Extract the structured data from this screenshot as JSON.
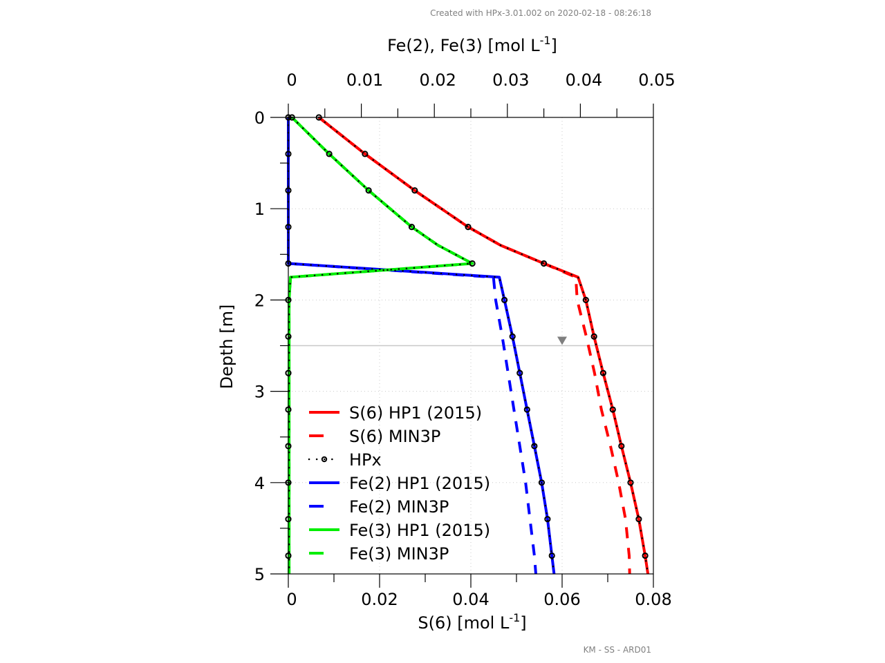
{
  "header": {
    "created_with": "Created with HPx-3.01.002  on 2020-02-18 - 08:26:18"
  },
  "footer": {
    "code": "KM - SS - ARD01"
  },
  "chart_data": {
    "type": "line",
    "title": "",
    "ylabel": "Depth [m]",
    "ylim": [
      0,
      5
    ],
    "yticks": [
      "0",
      "1",
      "2",
      "3",
      "4",
      "5"
    ],
    "y_inverted": true,
    "grid": true,
    "x_bottom": {
      "label": "S(6) [mol L",
      "label_sup": "-1",
      "label_end": "]",
      "xlim": [
        0,
        0.08
      ],
      "ticks": [
        "0",
        "0.02",
        "0.04",
        "0.06",
        "0.08"
      ]
    },
    "x_top": {
      "label": "Fe(2), Fe(3) [mol L",
      "label_sup": "-1",
      "label_end": "]",
      "xlim": [
        0,
        0.05
      ],
      "ticks": [
        "0",
        "0.01",
        "0.02",
        "0.03",
        "0.04",
        "0.05"
      ]
    },
    "water_table_depth": 2.5,
    "water_table_marker_x_s6": 0.06,
    "legend_position": "bottom-left",
    "series": [
      {
        "name": "S(6) HP1 (2015)",
        "axis": "bottom",
        "color": "#ff0000",
        "style": "solid",
        "points": [
          [
            0.0067,
            0
          ],
          [
            0.0168,
            0.4
          ],
          [
            0.0277,
            0.8
          ],
          [
            0.0394,
            1.2
          ],
          [
            0.0465,
            1.4
          ],
          [
            0.056,
            1.6
          ],
          [
            0.0635,
            1.75
          ],
          [
            0.0652,
            2.0
          ],
          [
            0.067,
            2.4
          ],
          [
            0.069,
            2.8
          ],
          [
            0.0711,
            3.2
          ],
          [
            0.073,
            3.6
          ],
          [
            0.075,
            4.0
          ],
          [
            0.0768,
            4.4
          ],
          [
            0.0782,
            4.8
          ],
          [
            0.0788,
            5.0
          ]
        ]
      },
      {
        "name": "S(6) MIN3P",
        "axis": "bottom",
        "color": "#ff0000",
        "style": "dashed",
        "points": [
          [
            0.0067,
            0
          ],
          [
            0.0168,
            0.4
          ],
          [
            0.0277,
            0.8
          ],
          [
            0.0394,
            1.2
          ],
          [
            0.0465,
            1.4
          ],
          [
            0.056,
            1.6
          ],
          [
            0.063,
            1.75
          ],
          [
            0.0633,
            2.0
          ],
          [
            0.0653,
            2.4
          ],
          [
            0.0671,
            2.8
          ],
          [
            0.0686,
            3.2
          ],
          [
            0.0706,
            3.6
          ],
          [
            0.0724,
            4.0
          ],
          [
            0.0739,
            4.4
          ],
          [
            0.0747,
            4.8
          ],
          [
            0.0748,
            5.0
          ]
        ]
      },
      {
        "name": "Fe(2) HP1 (2015)",
        "axis": "top",
        "color": "#0000ff",
        "style": "solid",
        "points": [
          [
            0,
            0
          ],
          [
            0,
            1.6
          ],
          [
            0.0289,
            1.75
          ],
          [
            0.0296,
            2.0
          ],
          [
            0.0307,
            2.4
          ],
          [
            0.0317,
            2.8
          ],
          [
            0.0327,
            3.2
          ],
          [
            0.0337,
            3.6
          ],
          [
            0.0347,
            4.0
          ],
          [
            0.0355,
            4.4
          ],
          [
            0.0361,
            4.8
          ],
          [
            0.0364,
            5.0
          ]
        ]
      },
      {
        "name": "Fe(2) MIN3P",
        "axis": "top",
        "color": "#0000ff",
        "style": "dashed",
        "points": [
          [
            0,
            0
          ],
          [
            0,
            1.6
          ],
          [
            0.0281,
            1.75
          ],
          [
            0.0284,
            2.0
          ],
          [
            0.0293,
            2.4
          ],
          [
            0.0301,
            2.8
          ],
          [
            0.0309,
            3.2
          ],
          [
            0.0317,
            3.6
          ],
          [
            0.0325,
            4.0
          ],
          [
            0.0331,
            4.4
          ],
          [
            0.0337,
            4.8
          ],
          [
            0.0339,
            5.0
          ]
        ]
      },
      {
        "name": "Fe(3) HP1 (2015)",
        "axis": "top",
        "color": "#00ee00",
        "style": "solid",
        "points": [
          [
            0.0005,
            0
          ],
          [
            0.0056,
            0.4
          ],
          [
            0.011,
            0.8
          ],
          [
            0.0169,
            1.2
          ],
          [
            0.0205,
            1.4
          ],
          [
            0.0252,
            1.6
          ],
          [
            0.0003,
            1.75
          ],
          [
            0.0001,
            2.0
          ],
          [
            0.0001,
            5.0
          ]
        ]
      },
      {
        "name": "Fe(3) MIN3P",
        "axis": "top",
        "color": "#00ee00",
        "style": "dashed",
        "points": [
          [
            0.0005,
            0
          ],
          [
            0.0056,
            0.4
          ],
          [
            0.011,
            0.8
          ],
          [
            0.0169,
            1.2
          ],
          [
            0.0205,
            1.4
          ],
          [
            0.0252,
            1.6
          ],
          [
            0.0003,
            1.75
          ],
          [
            0.0001,
            2.0
          ],
          [
            0.0001,
            5.0
          ]
        ]
      }
    ],
    "hpx": {
      "name": "HPx",
      "color": "#000000",
      "style": "dotted-circle",
      "s6": [
        [
          0.0067,
          0
        ],
        [
          0.0168,
          0.4
        ],
        [
          0.0277,
          0.8
        ],
        [
          0.0394,
          1.2
        ],
        [
          0.056,
          1.6
        ],
        [
          0.0652,
          2.0
        ],
        [
          0.067,
          2.4
        ],
        [
          0.069,
          2.8
        ],
        [
          0.0711,
          3.2
        ],
        [
          0.073,
          3.6
        ],
        [
          0.075,
          4.0
        ],
        [
          0.0768,
          4.4
        ],
        [
          0.0782,
          4.8
        ]
      ],
      "fe2": [
        [
          0,
          0
        ],
        [
          0,
          0.4
        ],
        [
          0,
          0.8
        ],
        [
          0,
          1.2
        ],
        [
          0,
          1.6
        ],
        [
          0.0296,
          2.0
        ],
        [
          0.0307,
          2.4
        ],
        [
          0.0317,
          2.8
        ],
        [
          0.0327,
          3.2
        ],
        [
          0.0337,
          3.6
        ],
        [
          0.0347,
          4.0
        ],
        [
          0.0355,
          4.4
        ],
        [
          0.0361,
          4.8
        ]
      ],
      "fe3": [
        [
          0.0005,
          0
        ],
        [
          0.0056,
          0.4
        ],
        [
          0.011,
          0.8
        ],
        [
          0.0169,
          1.2
        ],
        [
          0.0252,
          1.6
        ],
        [
          0,
          2.0
        ],
        [
          0,
          2.4
        ],
        [
          0,
          2.8
        ],
        [
          0,
          3.2
        ],
        [
          0,
          3.6
        ],
        [
          0,
          4.0
        ],
        [
          0,
          4.4
        ],
        [
          0,
          4.8
        ]
      ]
    },
    "legend": [
      {
        "label": "S(6) HP1 (2015)",
        "color": "#ff0000",
        "style": "solid"
      },
      {
        "label": "S(6) MIN3P",
        "color": "#ff0000",
        "style": "dashed"
      },
      {
        "label": "HPx",
        "color": "#000000",
        "style": "dotted-circle"
      },
      {
        "label": "Fe(2) HP1 (2015)",
        "color": "#0000ff",
        "style": "solid"
      },
      {
        "label": "Fe(2) MIN3P",
        "color": "#0000ff",
        "style": "dashed"
      },
      {
        "label": "Fe(3) HP1 (2015)",
        "color": "#00ee00",
        "style": "solid"
      },
      {
        "label": "Fe(3) MIN3P",
        "color": "#00ee00",
        "style": "dashed"
      }
    ]
  }
}
